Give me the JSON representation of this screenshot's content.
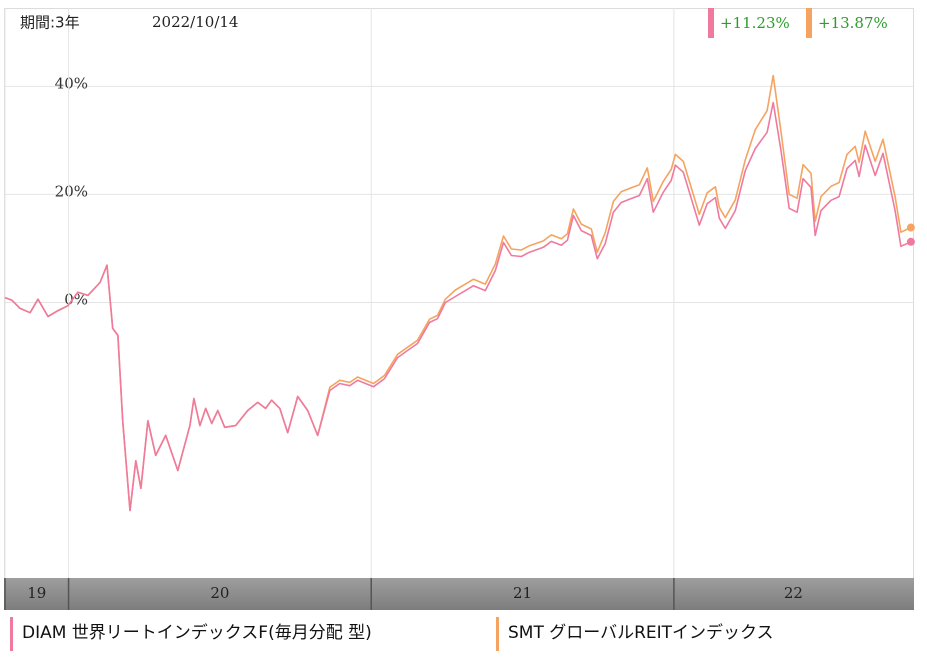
{
  "chart_data": {
    "type": "line",
    "period": "期間:3年",
    "date": "2022/10/14",
    "xlim": [
      2019.79,
      2022.79
    ],
    "xticks": [
      {
        "value": 2019.79,
        "label": "19"
      },
      {
        "value": 2020,
        "label": "20"
      },
      {
        "value": 2021,
        "label": "21"
      },
      {
        "value": 2022,
        "label": "22"
      }
    ],
    "ylim": [
      -51,
      54.5
    ],
    "yticks": [
      {
        "value": 0,
        "label": "0%"
      },
      {
        "value": 20,
        "label": "20%"
      },
      {
        "value": 40,
        "label": "40%"
      }
    ],
    "grid": true,
    "x": [
      2019.79,
      2019.813,
      2019.84,
      2019.873,
      2019.899,
      2019.932,
      2019.965,
      2019.998,
      2020.031,
      2020.064,
      2020.104,
      2020.127,
      2020.146,
      2020.163,
      2020.179,
      2020.203,
      2020.222,
      2020.239,
      2020.262,
      2020.288,
      2020.321,
      2020.361,
      2020.401,
      2020.414,
      2020.434,
      2020.453,
      2020.473,
      2020.493,
      2020.516,
      2020.552,
      2020.592,
      2020.625,
      2020.651,
      2020.671,
      2020.698,
      2020.724,
      2020.757,
      2020.79,
      2020.823,
      2020.863,
      2020.896,
      2020.929,
      2020.955,
      2020.981,
      2021.008,
      2021.044,
      2021.087,
      2021.12,
      2021.153,
      2021.193,
      2021.219,
      2021.245,
      2021.278,
      2021.311,
      2021.338,
      2021.377,
      2021.41,
      2021.437,
      2021.463,
      2021.496,
      2021.523,
      2021.569,
      2021.595,
      2021.628,
      2021.648,
      2021.668,
      2021.694,
      2021.727,
      2021.747,
      2021.773,
      2021.8,
      2021.826,
      2021.853,
      2021.886,
      2021.912,
      2021.932,
      2021.965,
      2021.991,
      2022.005,
      2022.031,
      2022.064,
      2022.084,
      2022.11,
      2022.137,
      2022.15,
      2022.17,
      2022.203,
      2022.236,
      2022.269,
      2022.308,
      2022.328,
      2022.354,
      2022.381,
      2022.407,
      2022.427,
      2022.453,
      2022.467,
      2022.486,
      2022.519,
      2022.546,
      2022.572,
      2022.599,
      2022.612,
      2022.632,
      2022.665,
      2022.691,
      2022.731,
      2022.75,
      2022.783
    ],
    "series": [
      {
        "name": "DIAM 世界リートインデックスF(毎月分配 型)",
        "color": "#ef7a9e",
        "end_label": "+11.23%",
        "values": [
          0.9,
          0.4,
          -1.1,
          -1.9,
          0.6,
          -2.6,
          -1.5,
          -0.6,
          1.9,
          1.3,
          3.7,
          6.9,
          -4.8,
          -6.1,
          -21.9,
          -38.5,
          -29.3,
          -34.4,
          -21.9,
          -28.3,
          -24.6,
          -31.1,
          -22.8,
          -17.8,
          -22.8,
          -19.6,
          -22.4,
          -20.0,
          -23.1,
          -22.8,
          -20.0,
          -18.5,
          -19.6,
          -18.1,
          -19.6,
          -24.1,
          -17.4,
          -20.0,
          -24.6,
          -16.3,
          -15.0,
          -15.4,
          -14.4,
          -15.0,
          -15.6,
          -14.1,
          -10.2,
          -8.9,
          -7.6,
          -3.7,
          -3.0,
          0,
          1.1,
          2.2,
          3.1,
          2.2,
          5.9,
          11.1,
          8.7,
          8.5,
          9.3,
          10.2,
          11.3,
          10.6,
          11.5,
          16.1,
          13.3,
          12.4,
          8.1,
          10.9,
          16.7,
          18.5,
          19.1,
          19.8,
          22.9,
          16.7,
          20.4,
          22.6,
          25.4,
          24.1,
          18.0,
          14.3,
          18.3,
          19.4,
          15.6,
          13.7,
          17.0,
          24.4,
          28.5,
          31.5,
          37.0,
          28.1,
          17.4,
          16.7,
          22.9,
          21.3,
          12.4,
          17.0,
          18.9,
          19.6,
          24.8,
          26.3,
          23.3,
          29.1,
          23.5,
          27.6,
          17.0,
          10.4,
          11.23
        ]
      },
      {
        "name": "SMT グローバルREITインデックス",
        "color": "#f4a460",
        "end_label": "+13.87%",
        "values": [
          0.9,
          0.4,
          -1.1,
          -1.9,
          0.6,
          -2.6,
          -1.5,
          -0.6,
          1.9,
          1.3,
          3.7,
          6.9,
          -4.8,
          -6.1,
          -21.9,
          -38.5,
          -29.3,
          -34.4,
          -21.9,
          -28.3,
          -24.6,
          -31.1,
          -22.8,
          -17.8,
          -22.8,
          -19.6,
          -22.4,
          -20.0,
          -23.1,
          -22.8,
          -20.0,
          -18.5,
          -19.6,
          -18.1,
          -19.6,
          -24.1,
          -17.4,
          -20.0,
          -24.6,
          -15.7,
          -14.4,
          -14.8,
          -13.8,
          -14.4,
          -15.0,
          -13.5,
          -9.6,
          -8.3,
          -7.0,
          -3.1,
          -2.4,
          0.6,
          2.3,
          3.4,
          4.3,
          3.4,
          7.1,
          12.3,
          9.9,
          9.7,
          10.5,
          11.4,
          12.5,
          11.8,
          12.7,
          17.3,
          14.5,
          13.6,
          9.3,
          12.9,
          18.7,
          20.5,
          21.1,
          21.8,
          24.9,
          18.7,
          22.4,
          24.6,
          27.4,
          26.1,
          20.0,
          16.3,
          20.3,
          21.4,
          17.6,
          15.7,
          19.0,
          26.4,
          32.0,
          35.5,
          42.0,
          31.6,
          20.0,
          19.3,
          25.5,
          23.9,
          15.0,
          19.6,
          21.5,
          22.2,
          27.4,
          28.9,
          25.9,
          31.7,
          26.1,
          30.2,
          19.6,
          13.0,
          13.87
        ]
      }
    ]
  }
}
